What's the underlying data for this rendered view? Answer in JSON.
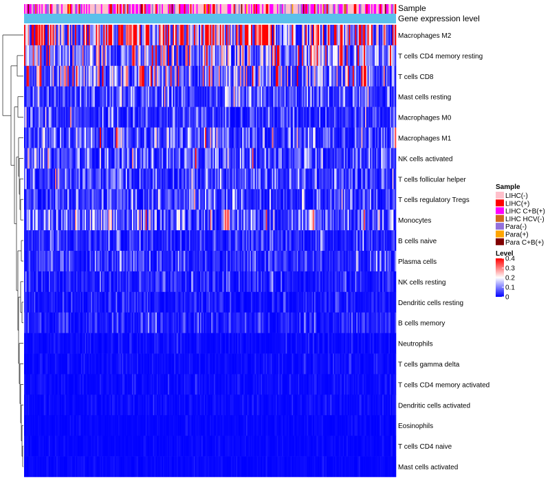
{
  "chart_data": {
    "type": "heatmap",
    "annotation_rows": [
      "Sample",
      "Gene expression level"
    ],
    "rows": [
      "Macrophages M2",
      "T cells CD4 memory resting",
      "T cells CD8",
      "Mast cells resting",
      "Macrophages M0",
      "Macrophages M1",
      "NK cells activated",
      "T cells follicular helper",
      "T cells regulatory  Tregs",
      "Monocytes",
      "B cells naive",
      "Plasma cells",
      "NK cells resting",
      "Dendritic cells resting",
      "B cells memory",
      "Neutrophils",
      "T cells gamma delta",
      "T cells CD4 memory activated",
      "Dendritic cells activated",
      "Eosinophils",
      "T cells CD4 naive",
      "Mast cells activated"
    ],
    "row_mean_level": [
      0.28,
      0.14,
      0.14,
      0.06,
      0.05,
      0.08,
      0.07,
      0.06,
      0.06,
      0.09,
      0.04,
      0.04,
      0.03,
      0.02,
      0.03,
      0.01,
      0.01,
      0.01,
      0.01,
      0.005,
      0.005,
      0.005
    ],
    "n_samples": 300,
    "color_scale": {
      "low": "#0000ff",
      "mid": "#ffffff",
      "high": "#ff0000",
      "range": [
        0,
        0.4
      ]
    },
    "gene_expression_color": "#5bc0eb",
    "legend": {
      "sample": {
        "title": "Sample",
        "items": [
          {
            "label": "LIHC(-)",
            "color": "#ffc0cb"
          },
          {
            "label": "LIHC(+)",
            "color": "#ff0000"
          },
          {
            "label": "LIHC C+B(+)",
            "color": "#ff00ff"
          },
          {
            "label": "LIHC HCV(-)",
            "color": "#d2691e"
          },
          {
            "label": "Para(-)",
            "color": "#9370db"
          },
          {
            "label": "Para(+)",
            "color": "#ffa500"
          },
          {
            "label": "Para C+B(+)",
            "color": "#800000"
          }
        ]
      },
      "level": {
        "title": "Level",
        "ticks": [
          "0.4",
          "0.3",
          "0.2",
          "0.1",
          "0"
        ],
        "tick_values": [
          0.4,
          0.3,
          0.2,
          0.1,
          0
        ]
      }
    }
  }
}
